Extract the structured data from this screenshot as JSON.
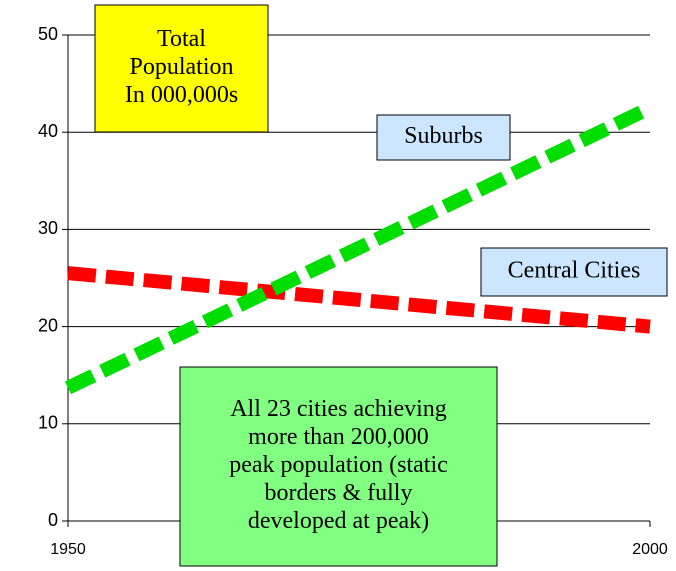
{
  "chart_data": {
    "type": "line",
    "x": [
      1950,
      2000
    ],
    "xlim": [
      1950,
      2000
    ],
    "xticks": [
      1950,
      2000
    ],
    "ylim": [
      0,
      50
    ],
    "yticks": [
      0,
      10,
      20,
      30,
      40,
      50
    ],
    "grid": true,
    "series": [
      {
        "name": "Central Cities",
        "color": "#ff0000",
        "values": [
          25.5,
          20.0
        ]
      },
      {
        "name": "Suburbs",
        "color": "#00dd00",
        "values": [
          13.7,
          42.5
        ]
      }
    ],
    "annotations": [
      {
        "lines": [
          "Total",
          "Population",
          "In 000,000s"
        ],
        "color": "#ffff00"
      },
      {
        "lines": [
          "All 23 cities achieving",
          "more than 200,000",
          "peak population (static",
          "borders & fully",
          "developed at peak)"
        ],
        "color": "#80ff80"
      }
    ]
  }
}
